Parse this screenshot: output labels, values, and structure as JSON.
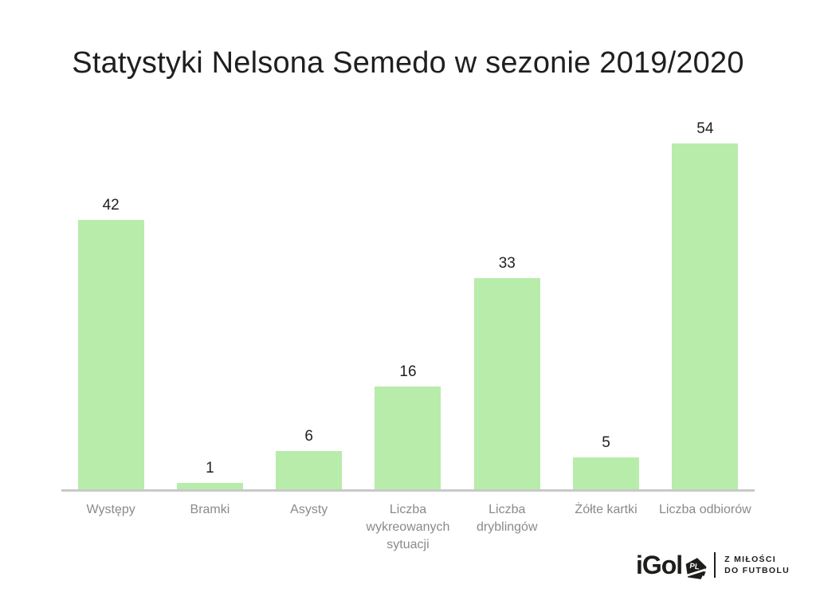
{
  "title": "Statystyki Nelsona Semedo w sezonie 2019/2020",
  "chart_data": {
    "type": "bar",
    "categories": [
      "Występy",
      "Bramki",
      "Asysty",
      "Liczba wykreowanych sytuacji",
      "Liczba dryblingów",
      "Żółte kartki",
      "Liczba odbiorów"
    ],
    "values": [
      42,
      1,
      6,
      16,
      33,
      5,
      54
    ],
    "title": "Statystyki Nelsona Semedo w sezonie 2019/2020",
    "xlabel": "",
    "ylabel": "",
    "ylim": [
      0,
      54
    ],
    "grid": false,
    "legend": false,
    "value_labels_shown": true,
    "colors": {
      "bar_fill": "#b8ecaa",
      "value_label": "#212121",
      "category_label": "#8a8a8a",
      "axis_line": "#c9c9c9",
      "title": "#1f1f1f",
      "background": "#ffffff"
    }
  },
  "logo": {
    "brand": "iGol",
    "badge": "PL",
    "tagline_line1": "Z MIŁOŚCI",
    "tagline_line2": "DO FUTBOLU",
    "color": "#1d1d1b"
  }
}
